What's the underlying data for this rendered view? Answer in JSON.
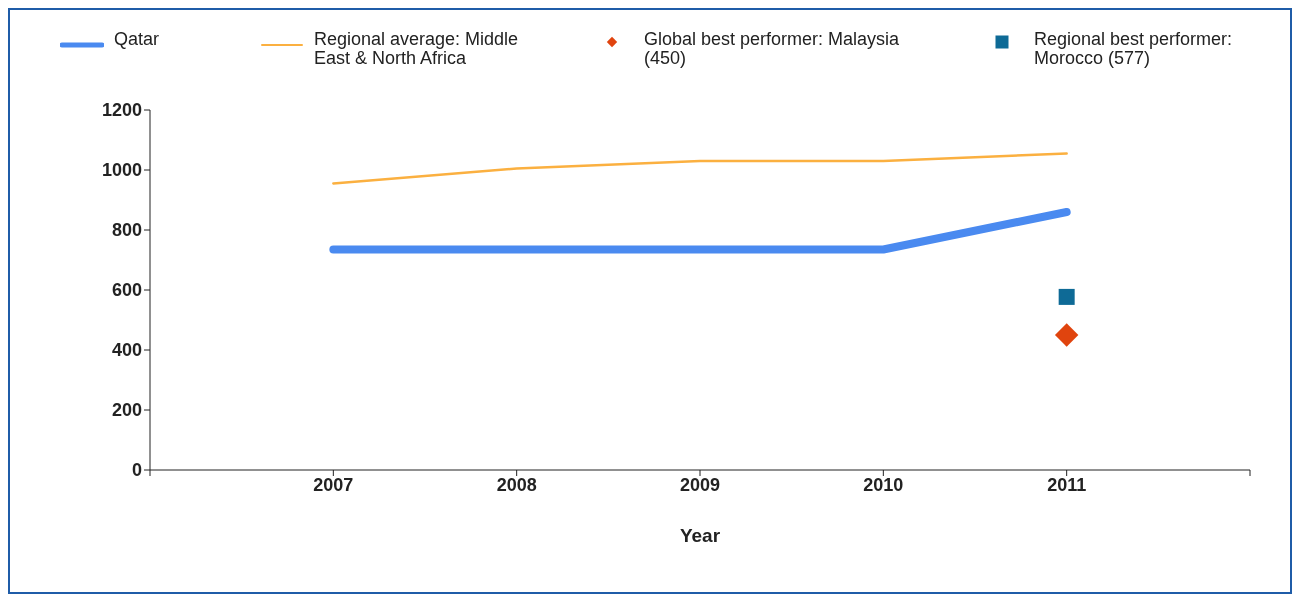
{
  "chart_data": {
    "type": "line",
    "xlabel": "Year",
    "x": [
      2007,
      2008,
      2009,
      2010,
      2011
    ],
    "xlim": [
      2006,
      2012
    ],
    "xticks": [
      {
        "value": 2006,
        "label": null
      },
      2007,
      2008,
      2009,
      2010,
      2011,
      {
        "value": 2012,
        "label": null
      }
    ],
    "ylim": [
      0,
      1200
    ],
    "yticks": [
      0,
      200,
      400,
      600,
      800,
      1000,
      1200
    ],
    "grid": false,
    "legend": "top",
    "series": [
      {
        "name": "Qatar",
        "color": "#4a8af0",
        "values": [
          735,
          735,
          735,
          735,
          860
        ]
      },
      {
        "name": "Regional average: Middle East & North Africa",
        "color": "#fbb040",
        "values": [
          955,
          1005,
          1030,
          1030,
          1055
        ]
      },
      {
        "name": "Global best performer: Malaysia (450)",
        "type": "scatter",
        "marker": "diamond",
        "color": "#e0440e",
        "x": [
          2011
        ],
        "values": [
          450
        ]
      },
      {
        "name": "Regional best performer: Morocco (577)",
        "type": "scatter",
        "marker": "square",
        "color": "#0e6a96",
        "x": [
          2011
        ],
        "values": [
          577
        ]
      }
    ]
  }
}
